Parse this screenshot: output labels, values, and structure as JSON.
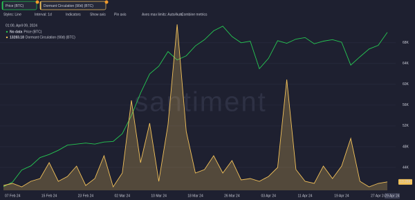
{
  "toolbar": {
    "tabs": [
      "Price (BTC)",
      "Dormant Circulation (90d) (BTC)"
    ],
    "controls": [
      "Styles: Line",
      "Interval: 1d",
      "Indicators",
      "Show axis",
      "Pin axis",
      "Axes max limits: Auto/Auto",
      "Combine metrics"
    ]
  },
  "watermark": "santiment",
  "tooltip": {
    "date": "01:00, April 09, 2024",
    "rows": [
      {
        "value": "No data",
        "name": "Price (BTC)"
      },
      {
        "value": "13283.18",
        "name": "Dormant Circulation (90d) (BTC)"
      }
    ]
  },
  "x_cursor_label": "29 Apr 24",
  "chart_data": {
    "type": "line",
    "categories": [
      null,
      "07 Feb 24",
      null,
      null,
      null,
      "15 Feb 24",
      null,
      null,
      null,
      "23 Feb 24",
      null,
      null,
      null,
      "02 Mar 24",
      null,
      null,
      null,
      "10 Mar 24",
      null,
      null,
      null,
      "18 Mar 24",
      null,
      null,
      null,
      "26 Mar 24",
      null,
      null,
      null,
      "03 Apr 24",
      null,
      null,
      null,
      "11 Apr 24",
      null,
      null,
      null,
      "19 Apr 24",
      null,
      null,
      null,
      "27 Apr 24",
      null
    ],
    "ylim": [
      39600,
      72500
    ],
    "yticks": [
      {
        "value": 44000,
        "label": "44K"
      },
      {
        "value": 48000,
        "label": "48K"
      },
      {
        "value": 52000,
        "label": "52K"
      },
      {
        "value": 56000,
        "label": "56K"
      },
      {
        "value": 60000,
        "label": "60K"
      },
      {
        "value": 64000,
        "label": "64K"
      },
      {
        "value": 68000,
        "label": "68K"
      }
    ],
    "y2lim": [
      0,
      270000
    ],
    "grid": true,
    "series": [
      {
        "name": "Price (BTC)",
        "color": "#26c953",
        "style": "line",
        "values": [
          40300,
          41200,
          43500,
          44300,
          45900,
          46500,
          47300,
          48300,
          48500,
          48700,
          48500,
          48900,
          49000,
          50500,
          54000,
          58300,
          62000,
          63500,
          66300,
          64700,
          65500,
          67400,
          68600,
          70300,
          71200,
          69200,
          68000,
          68300,
          63000,
          65000,
          68400,
          67900,
          68700,
          69000,
          67800,
          68300,
          68600,
          68100,
          63700,
          65300,
          66800,
          67500,
          70000
        ]
      },
      {
        "name": "Dormant Circulation (90d) (BTC)",
        "color": "#f3c25a",
        "style": "area",
        "axis": "y2",
        "values": [
          7700,
          10900,
          5500,
          14200,
          18600,
          43700,
          14200,
          21900,
          38300,
          7700,
          18600,
          54700,
          5500,
          27300,
          142000,
          43700,
          106000,
          14200,
          104000,
          262000,
          92900,
          27300,
          32800,
          54700,
          27300,
          47000,
          16400,
          18600,
          14200,
          21900,
          36100,
          175000,
          32800,
          14200,
          10900,
          38300,
          18600,
          38300,
          82000,
          14200,
          5500,
          10900,
          13283.18
        ],
        "value_labels": [
          null,
          null,
          null,
          null,
          null,
          null,
          null,
          null,
          null,
          null,
          null,
          null,
          null,
          null,
          null,
          null,
          null,
          null,
          null,
          null,
          null,
          null,
          null,
          null,
          null,
          null,
          null,
          null,
          null,
          null,
          null,
          null,
          null,
          null,
          null,
          null,
          null,
          null,
          null,
          null,
          null,
          null,
          "13.28K"
        ]
      }
    ]
  }
}
